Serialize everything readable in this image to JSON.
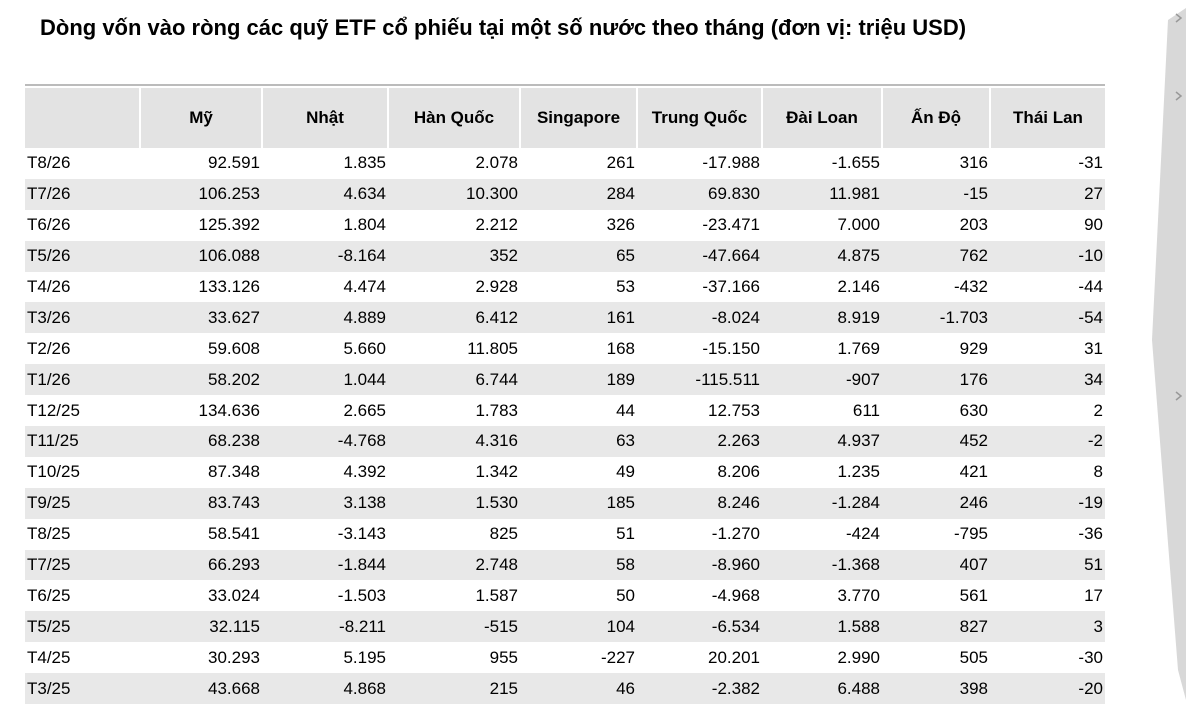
{
  "title": "Dòng vốn vào ròng các quỹ ETF cổ phiếu tại một số nước theo tháng (đơn vị: triệu USD)",
  "table": {
    "header": [
      "Mỹ",
      "Nhật",
      "Hàn Quốc",
      "Singapore",
      "Trung Quốc",
      "Đài Loan",
      "Ấn Độ",
      "Thái Lan"
    ],
    "rows": [
      [
        "T8/26",
        "92.591",
        "1.835",
        "2.078",
        "261",
        "-17.988",
        "-1.655",
        "316",
        "-31"
      ],
      [
        "T7/26",
        "106.253",
        "4.634",
        "10.300",
        "284",
        "69.830",
        "11.981",
        "-15",
        "27"
      ],
      [
        "T6/26",
        "125.392",
        "1.804",
        "2.212",
        "326",
        "-23.471",
        "7.000",
        "203",
        "90"
      ],
      [
        "T5/26",
        "106.088",
        "-8.164",
        "352",
        "65",
        "-47.664",
        "4.875",
        "762",
        "-10"
      ],
      [
        "T4/26",
        "133.126",
        "4.474",
        "2.928",
        "53",
        "-37.166",
        "2.146",
        "-432",
        "-44"
      ],
      [
        "T3/26",
        "33.627",
        "4.889",
        "6.412",
        "161",
        "-8.024",
        "8.919",
        "-1.703",
        "-54"
      ],
      [
        "T2/26",
        "59.608",
        "5.660",
        "11.805",
        "168",
        "-15.150",
        "1.769",
        "929",
        "31"
      ],
      [
        "T1/26",
        "58.202",
        "1.044",
        "6.744",
        "189",
        "-115.511",
        "-907",
        "176",
        "34"
      ],
      [
        "T12/25",
        "134.636",
        "2.665",
        "1.783",
        "44",
        "12.753",
        "611",
        "630",
        "2"
      ],
      [
        "T11/25",
        "68.238",
        "-4.768",
        "4.316",
        "63",
        "2.263",
        "4.937",
        "452",
        "-2"
      ],
      [
        "T10/25",
        "87.348",
        "4.392",
        "1.342",
        "49",
        "8.206",
        "1.235",
        "421",
        "8"
      ],
      [
        "T9/25",
        "83.743",
        "3.138",
        "1.530",
        "185",
        "8.246",
        "-1.284",
        "246",
        "-19"
      ],
      [
        "T8/25",
        "58.541",
        "-3.143",
        "825",
        "51",
        "-1.270",
        "-424",
        "-795",
        "-36"
      ],
      [
        "T7/25",
        "66.293",
        "-1.844",
        "2.748",
        "58",
        "-8.960",
        "-1.368",
        "407",
        "51"
      ],
      [
        "T6/25",
        "33.024",
        "-1.503",
        "1.587",
        "50",
        "-4.968",
        "3.770",
        "561",
        "17"
      ],
      [
        "T5/25",
        "32.115",
        "-8.211",
        "-515",
        "104",
        "-6.534",
        "1.588",
        "827",
        "3"
      ],
      [
        "T4/25",
        "30.293",
        "5.195",
        "955",
        "-227",
        "20.201",
        "2.990",
        "505",
        "-30"
      ],
      [
        "T3/25",
        "43.668",
        "4.868",
        "215",
        "46",
        "-2.382",
        "6.488",
        "398",
        "-20"
      ]
    ]
  }
}
